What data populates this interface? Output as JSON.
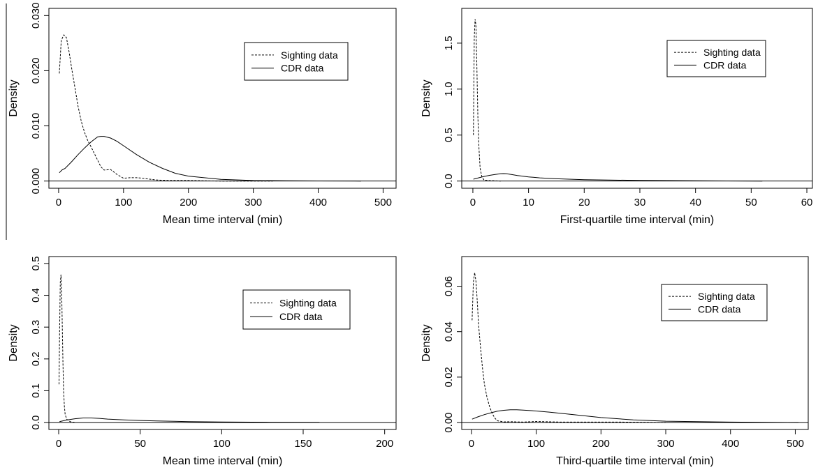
{
  "chart_data": [
    {
      "type": "line",
      "xlabel": "Mean time interval (min)",
      "ylabel": "Density",
      "xlim": [
        -15,
        520
      ],
      "ylim": [
        0,
        0.03
      ],
      "xticks": [
        0,
        100,
        200,
        300,
        400,
        500
      ],
      "yticks": [
        0.0,
        0.01,
        0.02,
        0.03
      ],
      "xtick_labels": [
        "0",
        "100",
        "200",
        "300",
        "400",
        "500"
      ],
      "ytick_labels": [
        "0.000",
        "0.010",
        "0.020",
        "0.030"
      ],
      "legend": "top-right",
      "series": [
        {
          "name": "Sighting data",
          "style": "dashed",
          "x": [
            1,
            4,
            8,
            12,
            16,
            20,
            25,
            30,
            35,
            40,
            45,
            50,
            55,
            60,
            65,
            70,
            80,
            90,
            100,
            110,
            120,
            130,
            150,
            170,
            200,
            250,
            300,
            330
          ],
          "y": [
            0.0195,
            0.0255,
            0.0265,
            0.026,
            0.0235,
            0.0205,
            0.017,
            0.0135,
            0.0108,
            0.0088,
            0.0073,
            0.0062,
            0.005,
            0.0038,
            0.0026,
            0.002,
            0.0021,
            0.0012,
            0.0005,
            0.0006,
            0.0006,
            0.0005,
            0.0002,
            0.0001,
            0.0001,
            0.0,
            0.0,
            0.0
          ]
        },
        {
          "name": "CDR data",
          "style": "solid",
          "x": [
            1,
            5,
            10,
            20,
            30,
            40,
            50,
            60,
            65,
            70,
            80,
            90,
            100,
            120,
            140,
            160,
            180,
            200,
            250,
            300,
            350,
            400,
            466
          ],
          "y": [
            0.0015,
            0.002,
            0.0023,
            0.0035,
            0.0048,
            0.006,
            0.0071,
            0.008,
            0.0081,
            0.0081,
            0.0078,
            0.0072,
            0.0064,
            0.0048,
            0.0034,
            0.0023,
            0.0014,
            0.0009,
            0.0003,
            0.0001,
            5e-05,
            2e-05,
            0.0
          ]
        }
      ]
    },
    {
      "type": "line",
      "xlabel": "First-quartile time interval (min)",
      "ylabel": "Density",
      "xlim": [
        -2,
        61
      ],
      "ylim": [
        0,
        1.8
      ],
      "xticks": [
        0,
        10,
        20,
        30,
        40,
        50,
        60
      ],
      "yticks": [
        0.0,
        0.5,
        1.0,
        1.5
      ],
      "xtick_labels": [
        "0",
        "10",
        "20",
        "30",
        "40",
        "50",
        "60"
      ],
      "ytick_labels": [
        "0.0",
        "0.5",
        "1.0",
        "1.5"
      ],
      "legend": "top-right",
      "series": [
        {
          "name": "Sighting data",
          "style": "dashed",
          "x": [
            0.1,
            0.25,
            0.4,
            0.55,
            0.7,
            0.9,
            1.1,
            1.3,
            1.6,
            2.0,
            3.0,
            5.0
          ],
          "y": [
            0.5,
            1.55,
            1.76,
            1.7,
            1.3,
            0.7,
            0.35,
            0.14,
            0.05,
            0.01,
            0.005,
            0.0
          ]
        },
        {
          "name": "CDR data",
          "style": "solid",
          "x": [
            0.1,
            1,
            2,
            3,
            4,
            5,
            5.5,
            6,
            7,
            8,
            10,
            12,
            15,
            20,
            30,
            40,
            52
          ],
          "y": [
            0.02,
            0.035,
            0.05,
            0.062,
            0.072,
            0.08,
            0.081,
            0.08,
            0.07,
            0.06,
            0.045,
            0.035,
            0.025,
            0.015,
            0.007,
            0.003,
            0.0
          ]
        }
      ]
    },
    {
      "type": "line",
      "xlabel": "Mean time interval (min)",
      "ylabel": "Density",
      "xlim": [
        -6,
        207
      ],
      "ylim": [
        0,
        0.5
      ],
      "xticks": [
        0,
        50,
        100,
        150,
        200
      ],
      "yticks": [
        0.0,
        0.1,
        0.2,
        0.3,
        0.4,
        0.5
      ],
      "xtick_labels": [
        "0",
        "50",
        "100",
        "150",
        "200"
      ],
      "ytick_labels": [
        "0.0",
        "0.1",
        "0.2",
        "0.3",
        "0.4",
        "0.5"
      ],
      "legend": "top-right",
      "series": [
        {
          "name": "Sighting data",
          "style": "dashed",
          "x": [
            0.2,
            0.6,
            1.0,
            1.4,
            1.8,
            2.2,
            2.6,
            3.0,
            3.5,
            4.0,
            5.0,
            7.0,
            10.0
          ],
          "y": [
            0.12,
            0.3,
            0.44,
            0.465,
            0.42,
            0.31,
            0.19,
            0.1,
            0.05,
            0.025,
            0.01,
            0.003,
            0.0
          ]
        },
        {
          "name": "CDR data",
          "style": "solid",
          "x": [
            0.5,
            5,
            10,
            15,
            20,
            25,
            30,
            40,
            50,
            60,
            80,
            100,
            130,
            160
          ],
          "y": [
            0.003,
            0.008,
            0.012,
            0.0145,
            0.0145,
            0.013,
            0.011,
            0.0085,
            0.0065,
            0.005,
            0.003,
            0.0018,
            0.0008,
            0.0003
          ]
        }
      ]
    },
    {
      "type": "line",
      "xlabel": "Third-quartile time interval (min)",
      "ylabel": "Density",
      "xlim": [
        -15,
        520
      ],
      "ylim": [
        0,
        0.07
      ],
      "xticks": [
        0,
        100,
        200,
        300,
        400,
        500
      ],
      "yticks": [
        0.0,
        0.02,
        0.04,
        0.06
      ],
      "xtick_labels": [
        "0",
        "100",
        "200",
        "300",
        "400",
        "500"
      ],
      "ytick_labels": [
        "0.00",
        "0.02",
        "0.04",
        "0.06"
      ],
      "legend": "top-right",
      "series": [
        {
          "name": "Sighting data",
          "style": "dashed",
          "x": [
            1,
            3,
            5,
            7,
            9,
            11,
            14,
            17,
            20,
            24,
            28,
            32,
            36,
            40,
            50,
            60,
            80,
            100,
            140,
            230,
            300
          ],
          "y": [
            0.045,
            0.062,
            0.066,
            0.062,
            0.053,
            0.043,
            0.033,
            0.024,
            0.017,
            0.011,
            0.007,
            0.004,
            0.002,
            0.0008,
            0.0003,
            0.0004,
            0.0002,
            0.0005,
            0.0002,
            0.0002,
            0.0
          ]
        },
        {
          "name": "CDR data",
          "style": "solid",
          "x": [
            1,
            10,
            20,
            30,
            40,
            50,
            60,
            70,
            80,
            100,
            120,
            150,
            200,
            250,
            300,
            400,
            505
          ],
          "y": [
            0.0015,
            0.0025,
            0.0035,
            0.0043,
            0.005,
            0.0054,
            0.0056,
            0.0056,
            0.0055,
            0.0051,
            0.0046,
            0.0037,
            0.0022,
            0.0012,
            0.0006,
            0.0002,
            0.0
          ]
        }
      ]
    }
  ]
}
